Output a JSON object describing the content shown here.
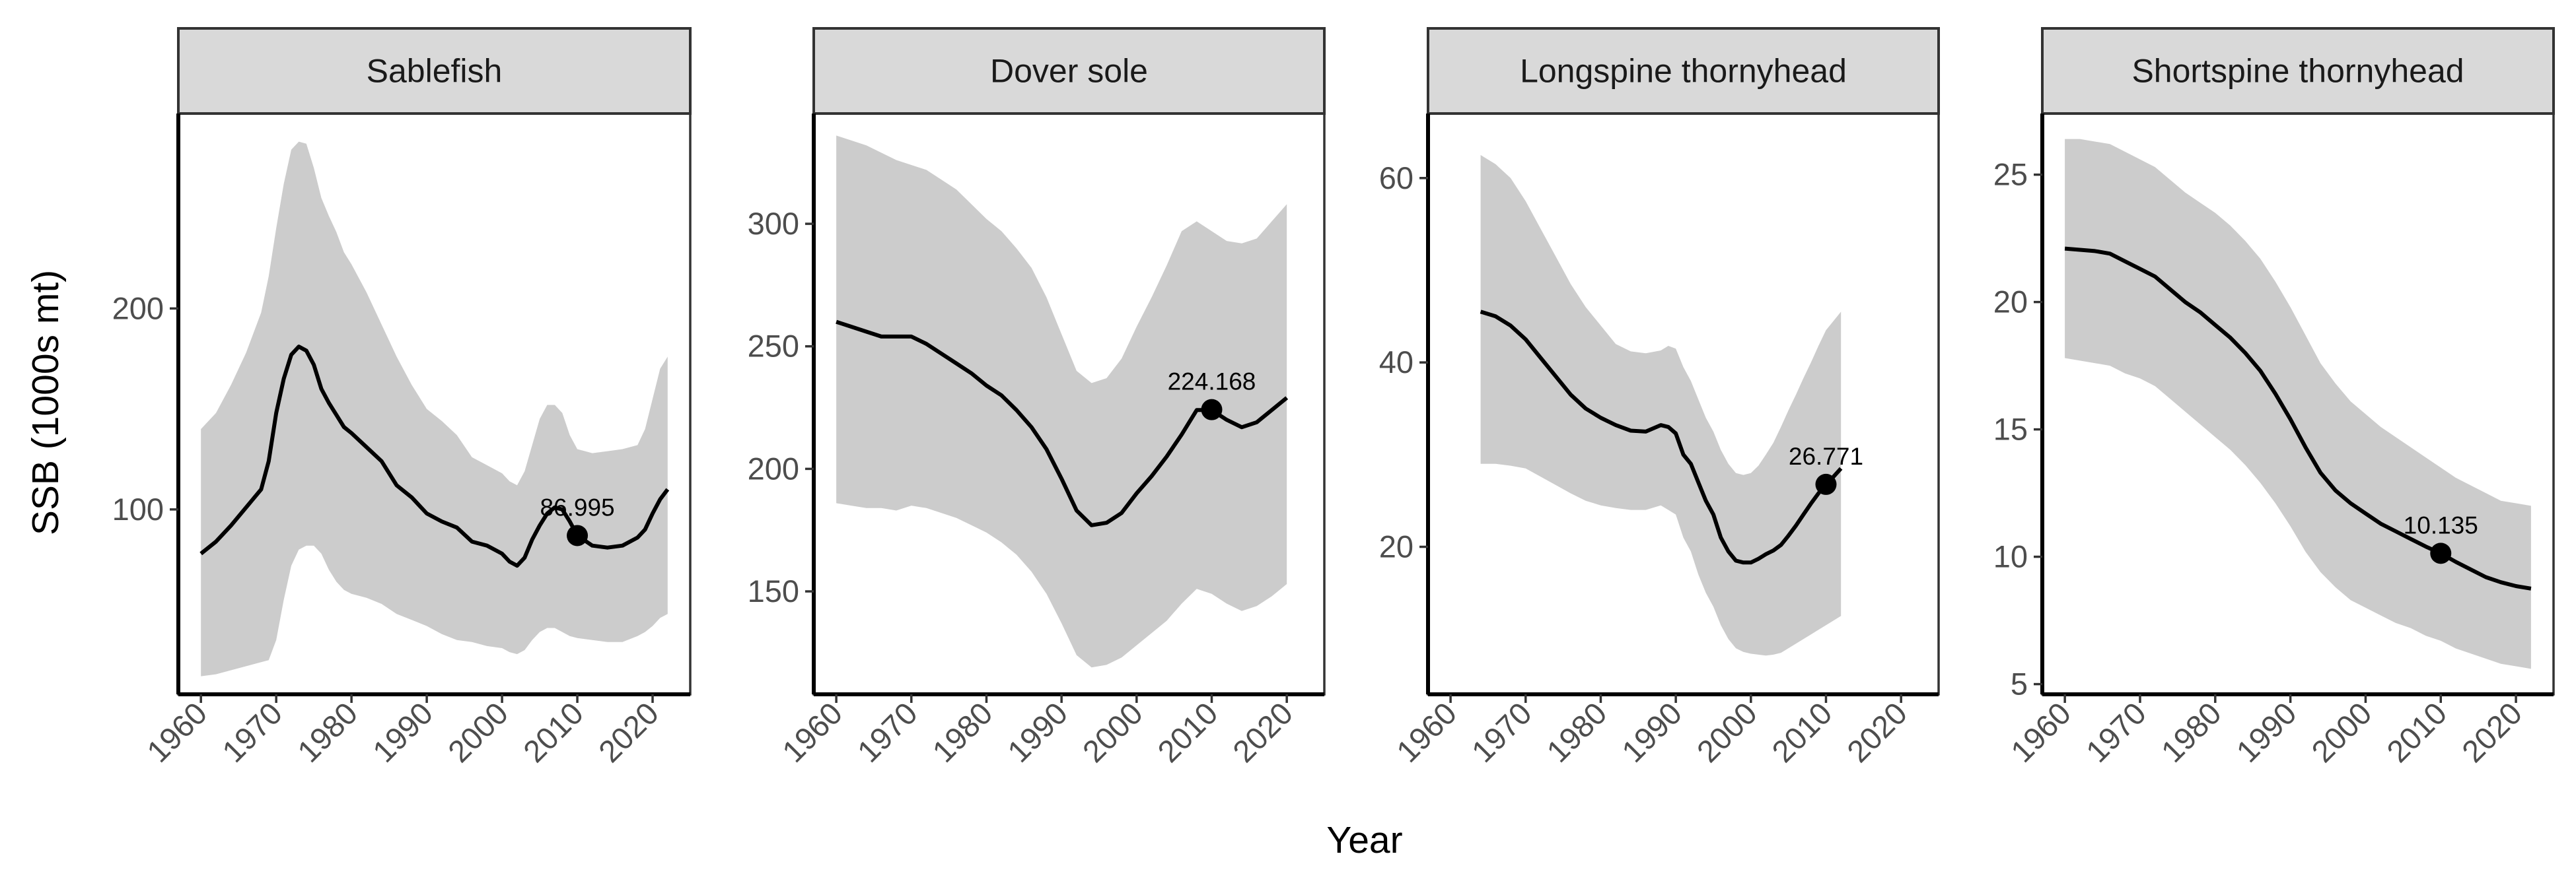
{
  "chart_data": {
    "type": "line",
    "xlabel": "Year",
    "ylabel": "SSB (1000s mt)",
    "x_ticks": [
      1960,
      1970,
      1980,
      1990,
      2000,
      2010,
      2020
    ],
    "xlim": [
      1957,
      2025
    ],
    "panels": [
      {
        "name": "Sablefish",
        "ylim": [
          8,
          297
        ],
        "y_ticks": [
          100,
          200
        ],
        "series": {
          "x": [
            1960,
            1962,
            1964,
            1966,
            1968,
            1969,
            1970,
            1971,
            1972,
            1973,
            1974,
            1975,
            1976,
            1977,
            1978,
            1979,
            1980,
            1982,
            1984,
            1986,
            1988,
            1990,
            1992,
            1994,
            1996,
            1998,
            2000,
            2001,
            2002,
            2003,
            2004,
            2005,
            2006,
            2007,
            2008,
            2009,
            2010,
            2012,
            2014,
            2016,
            2018,
            2019,
            2020,
            2021,
            2022
          ],
          "y": [
            78,
            84,
            92,
            101,
            110,
            124,
            148,
            165,
            177,
            181,
            179,
            172,
            160,
            153,
            147,
            141,
            138,
            131,
            124,
            112,
            106,
            98,
            94,
            91,
            84,
            82,
            78,
            74,
            72,
            76,
            85,
            92,
            98,
            101,
            100,
            94,
            87,
            82,
            81,
            82,
            86,
            90,
            98,
            105,
            110
          ],
          "lower": [
            17,
            18,
            20,
            22,
            24,
            25,
            35,
            55,
            72,
            80,
            82,
            82,
            78,
            70,
            64,
            60,
            58,
            56,
            53,
            48,
            45,
            42,
            38,
            35,
            34,
            32,
            31,
            29,
            28,
            30,
            35,
            39,
            41,
            41,
            39,
            37,
            36,
            35,
            34,
            34,
            37,
            39,
            42,
            46,
            48
          ],
          "upper": [
            140,
            148,
            162,
            178,
            198,
            216,
            240,
            262,
            279,
            283,
            282,
            270,
            255,
            246,
            238,
            228,
            222,
            208,
            192,
            176,
            162,
            150,
            144,
            137,
            126,
            122,
            118,
            114,
            112,
            119,
            132,
            145,
            152,
            152,
            148,
            137,
            130,
            128,
            129,
            130,
            132,
            140,
            155,
            170,
            176
          ]
        },
        "point": {
          "x": 2010,
          "y": 86.995,
          "label": "86.995"
        }
      },
      {
        "name": "Dover sole",
        "ylim": [
          108,
          345
        ],
        "y_ticks": [
          150,
          200,
          250,
          300
        ],
        "series": {
          "x": [
            1960,
            1962,
            1964,
            1966,
            1968,
            1970,
            1972,
            1974,
            1976,
            1978,
            1980,
            1982,
            1984,
            1986,
            1988,
            1990,
            1992,
            1994,
            1996,
            1998,
            2000,
            2002,
            2004,
            2006,
            2008,
            2010,
            2012,
            2014,
            2016,
            2018,
            2020
          ],
          "y": [
            260,
            258,
            256,
            254,
            254,
            254,
            251,
            247,
            243,
            239,
            234,
            230,
            224,
            217,
            208,
            196,
            183,
            177,
            178,
            182,
            190,
            197,
            205,
            214,
            224,
            224,
            220,
            217,
            219,
            224,
            229
          ],
          "lower": [
            186,
            185,
            184,
            184,
            183,
            185,
            184,
            182,
            180,
            177,
            174,
            170,
            165,
            158,
            149,
            137,
            124,
            119,
            120,
            123,
            128,
            133,
            138,
            145,
            151,
            149,
            145,
            142,
            144,
            148,
            153
          ],
          "upper": [
            336,
            334,
            332,
            329,
            326,
            324,
            322,
            318,
            314,
            308,
            302,
            297,
            290,
            282,
            270,
            255,
            240,
            235,
            237,
            245,
            258,
            270,
            283,
            297,
            301,
            297,
            293,
            292,
            294,
            301,
            308
          ]
        },
        "point": {
          "x": 2010,
          "y": 224.168,
          "label": "224.168"
        }
      },
      {
        "name": "Longspine thornyhead",
        "ylim": [
          4,
          67
        ],
        "y_ticks": [
          20,
          40,
          60
        ],
        "series": {
          "x": [
            1964,
            1966,
            1968,
            1970,
            1972,
            1974,
            1976,
            1978,
            1980,
            1982,
            1984,
            1986,
            1988,
            1989,
            1990,
            1991,
            1992,
            1993,
            1994,
            1995,
            1996,
            1997,
            1998,
            1999,
            2000,
            2001,
            2002,
            2003,
            2004,
            2005,
            2006,
            2007,
            2008,
            2009,
            2010,
            2011,
            2012
          ],
          "y": [
            45.5,
            45,
            44,
            42.5,
            40.5,
            38.5,
            36.5,
            35,
            34,
            33.2,
            32.6,
            32.5,
            33.2,
            33,
            32.3,
            30,
            29,
            27,
            25,
            23.5,
            21,
            19.5,
            18.5,
            18.3,
            18.3,
            18.7,
            19.2,
            19.6,
            20.2,
            21.2,
            22.3,
            23.5,
            24.7,
            25.8,
            26.771,
            27.6,
            28.5
          ],
          "lower": [
            29,
            29,
            28.8,
            28.5,
            27.6,
            26.7,
            25.8,
            25,
            24.5,
            24.2,
            24,
            24,
            24.5,
            24,
            23.5,
            21,
            19.5,
            17,
            15,
            13.5,
            11.5,
            10,
            9,
            8.6,
            8.4,
            8.3,
            8.2,
            8.3,
            8.5,
            9,
            9.5,
            10,
            10.5,
            11,
            11.5,
            12,
            12.5
          ],
          "upper": [
            62.5,
            61.5,
            60,
            57.5,
            54.5,
            51.5,
            48.5,
            46,
            44,
            42,
            41.2,
            41,
            41.3,
            41.8,
            41.5,
            39.5,
            38,
            36,
            34,
            32.5,
            30.5,
            29,
            28,
            27.8,
            28,
            28.8,
            30,
            31.3,
            33,
            34.8,
            36.5,
            38.3,
            40,
            41.8,
            43.5,
            44.5,
            45.5
          ]
        },
        "point": {
          "x": 2010,
          "y": 26.771,
          "label": "26.771"
        }
      },
      {
        "name": "Shortspine thornyhead",
        "ylim": [
          4.6,
          27.4
        ],
        "y_ticks": [
          5,
          10,
          15,
          20,
          25
        ],
        "series": {
          "x": [
            1960,
            1962,
            1964,
            1966,
            1968,
            1970,
            1972,
            1974,
            1976,
            1978,
            1980,
            1982,
            1984,
            1986,
            1988,
            1990,
            1992,
            1994,
            1996,
            1998,
            2000,
            2002,
            2004,
            2006,
            2008,
            2010,
            2012,
            2014,
            2016,
            2018,
            2020,
            2022
          ],
          "y": [
            22.1,
            22.05,
            22,
            21.9,
            21.6,
            21.3,
            21,
            20.5,
            20,
            19.6,
            19.1,
            18.6,
            18,
            17.3,
            16.4,
            15.4,
            14.3,
            13.3,
            12.6,
            12.1,
            11.7,
            11.3,
            11,
            10.7,
            10.4,
            10.135,
            9.8,
            9.5,
            9.2,
            9,
            8.85,
            8.75
          ],
          "lower": [
            17.8,
            17.7,
            17.6,
            17.5,
            17.2,
            17,
            16.7,
            16.2,
            15.7,
            15.2,
            14.7,
            14.2,
            13.6,
            12.9,
            12.1,
            11.2,
            10.2,
            9.4,
            8.8,
            8.3,
            8,
            7.7,
            7.4,
            7.2,
            6.9,
            6.7,
            6.4,
            6.2,
            6,
            5.8,
            5.7,
            5.6
          ],
          "upper": [
            26.4,
            26.4,
            26.3,
            26.2,
            25.9,
            25.6,
            25.3,
            24.8,
            24.3,
            23.9,
            23.5,
            23,
            22.4,
            21.7,
            20.8,
            19.8,
            18.7,
            17.6,
            16.8,
            16.1,
            15.6,
            15.1,
            14.7,
            14.3,
            13.9,
            13.5,
            13.1,
            12.8,
            12.5,
            12.2,
            12.1,
            12
          ]
        },
        "point": {
          "x": 2010,
          "y": 10.135,
          "label": "10.135"
        }
      }
    ]
  }
}
